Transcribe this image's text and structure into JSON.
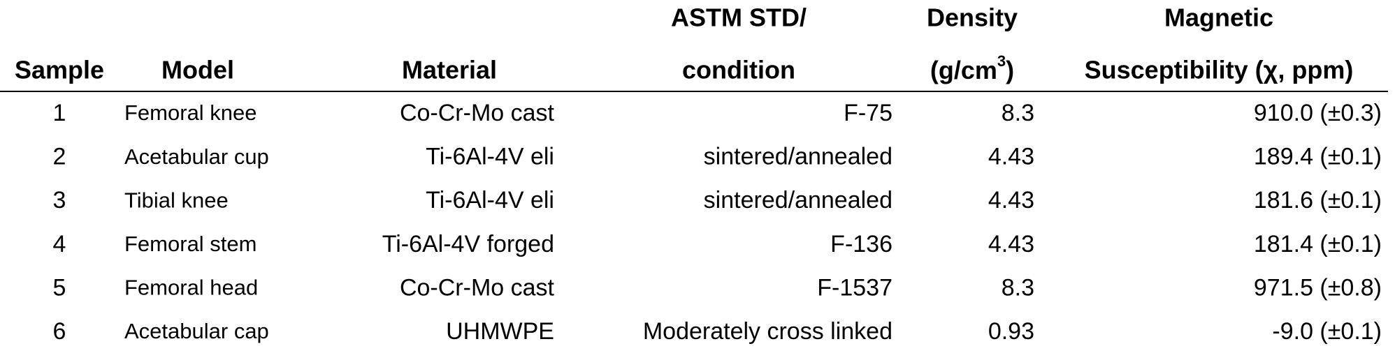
{
  "table": {
    "header": [
      {
        "lines": [
          "Sample"
        ]
      },
      {
        "lines": [
          "Model"
        ]
      },
      {
        "lines": [
          "Material"
        ]
      },
      {
        "lines": [
          "ASTM STD/",
          "condition"
        ]
      },
      {
        "lines": [
          "Density"
        ],
        "unit": {
          "text": "(g/cm",
          "sup": "3",
          "close": ")"
        }
      },
      {
        "lines": [
          "Magnetic",
          "Susceptibility (χ, ppm)"
        ]
      }
    ],
    "rows": [
      [
        1,
        "Femoral knee",
        "Co-Cr-Mo cast",
        "F-75",
        8.3,
        "910.0 (±0.3)"
      ],
      [
        2,
        "Acetabular cup",
        "Ti-6Al-4V eli",
        "sintered/annealed",
        4.43,
        "189.4 (±0.1)"
      ],
      [
        3,
        "Tibial knee",
        "Ti-6Al-4V eli",
        "sintered/annealed",
        4.43,
        "181.6 (±0.1)"
      ],
      [
        4,
        "Femoral stem",
        "Ti-6Al-4V forged",
        "F-136",
        4.43,
        "181.4 (±0.1)"
      ],
      [
        5,
        "Femoral head",
        "Co-Cr-Mo cast",
        "F-1537",
        8.3,
        "971.5 (±0.8)"
      ],
      [
        6,
        "Acetabular cap",
        "UHMWPE",
        "Moderately cross linked",
        0.93,
        "-9.0 (±0.1)"
      ]
    ]
  }
}
